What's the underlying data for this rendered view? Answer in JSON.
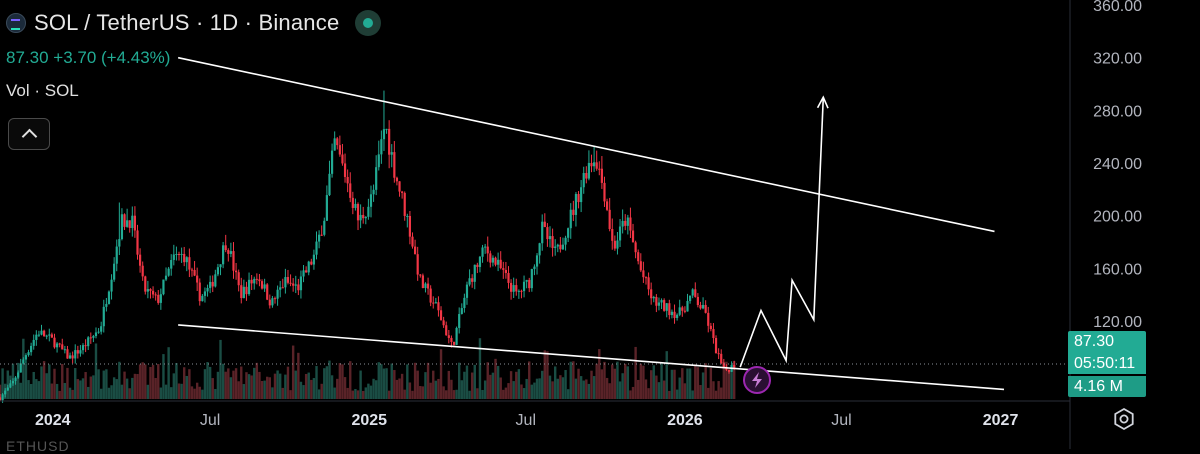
{
  "header": {
    "title": "SOL / TetherUS · 1D · Binance",
    "quote": "87.30 +3.70 (+4.43%)",
    "volume_label": "Vol · SOL",
    "cutoff_text": "ETHUSD"
  },
  "price_tags": {
    "price": "87.30",
    "countdown": "05:50:11",
    "volume": "4.16 M"
  },
  "colors": {
    "up": "#22ab94",
    "down": "#f23645",
    "accent": "#9c27b0"
  },
  "icons": [
    "symbol-logo-icon",
    "market-open-icon",
    "chevron-up-icon",
    "lightning-icon",
    "settings-icon"
  ],
  "chart_data": {
    "type": "candlestick",
    "ylim": [
      60,
      360
    ],
    "y_ticks": [
      "360.00",
      "320.00",
      "280.00",
      "240.00",
      "200.00",
      "160.00",
      "120.00"
    ],
    "y_tick_values": [
      360,
      320,
      280,
      240,
      200,
      160,
      120
    ],
    "x_ticks": [
      "2024",
      "Jul",
      "2025",
      "Jul",
      "2026",
      "Jul",
      "2027"
    ],
    "x_tick_dates": [
      "2024-01-01",
      "2024-07-01",
      "2025-01-01",
      "2025-07-01",
      "2026-01-01",
      "2026-07-01",
      "2027-01-01"
    ],
    "x_range": [
      "2023-11-01",
      "2027-03-20"
    ],
    "bold_x_ticks": [
      "2024",
      "2025",
      "2026",
      "2027"
    ],
    "last_price": 87.3,
    "series_path": [
      [
        "2023-11-01",
        62
      ],
      [
        "2023-11-15",
        72
      ],
      [
        "2023-12-01",
        95
      ],
      [
        "2023-12-15",
        112
      ],
      [
        "2024-01-01",
        105
      ],
      [
        "2024-01-20",
        92
      ],
      [
        "2024-02-05",
        100
      ],
      [
        "2024-02-25",
        115
      ],
      [
        "2024-03-10",
        160
      ],
      [
        "2024-03-20",
        195
      ],
      [
        "2024-04-01",
        198
      ],
      [
        "2024-04-15",
        145
      ],
      [
        "2024-05-01",
        135
      ],
      [
        "2024-05-20",
        168
      ],
      [
        "2024-06-01",
        170
      ],
      [
        "2024-06-20",
        138
      ],
      [
        "2024-07-01",
        145
      ],
      [
        "2024-07-20",
        182
      ],
      [
        "2024-08-05",
        140
      ],
      [
        "2024-08-25",
        155
      ],
      [
        "2024-09-10",
        133
      ],
      [
        "2024-09-25",
        150
      ],
      [
        "2024-10-10",
        145
      ],
      [
        "2024-10-30",
        170
      ],
      [
        "2024-11-10",
        200
      ],
      [
        "2024-11-22",
        255
      ],
      [
        "2024-12-05",
        230
      ],
      [
        "2024-12-20",
        195
      ],
      [
        "2025-01-05",
        215
      ],
      [
        "2025-01-19",
        270
      ],
      [
        "2025-02-01",
        230
      ],
      [
        "2025-02-15",
        195
      ],
      [
        "2025-03-01",
        150
      ],
      [
        "2025-03-20",
        130
      ],
      [
        "2025-04-07",
        100
      ],
      [
        "2025-04-25",
        148
      ],
      [
        "2025-05-15",
        175
      ],
      [
        "2025-06-01",
        160
      ],
      [
        "2025-06-20",
        140
      ],
      [
        "2025-07-05",
        150
      ],
      [
        "2025-07-20",
        190
      ],
      [
        "2025-08-05",
        170
      ],
      [
        "2025-08-25",
        205
      ],
      [
        "2025-09-10",
        238
      ],
      [
        "2025-09-20",
        245
      ],
      [
        "2025-10-01",
        215
      ],
      [
        "2025-10-10",
        175
      ],
      [
        "2025-10-25",
        198
      ],
      [
        "2025-11-10",
        160
      ],
      [
        "2025-11-25",
        135
      ],
      [
        "2025-12-10",
        130
      ],
      [
        "2025-12-25",
        125
      ],
      [
        "2026-01-10",
        140
      ],
      [
        "2026-01-25",
        125
      ],
      [
        "2026-02-05",
        100
      ],
      [
        "2026-02-15",
        82
      ],
      [
        "2026-03-01",
        87.3
      ]
    ],
    "spikes": [
      [
        "2024-03-18",
        210
      ],
      [
        "2024-11-22",
        264
      ],
      [
        "2025-01-19",
        295
      ],
      [
        "2025-09-18",
        253
      ]
    ],
    "trendlines": [
      {
        "from": [
          "2024-05-25",
          320
        ],
        "to": [
          "2026-12-25",
          188
        ]
      },
      {
        "from": [
          "2024-05-25",
          117
        ],
        "to": [
          "2027-01-05",
          68
        ]
      }
    ],
    "projection": [
      [
        "2026-03-06",
        85
      ],
      [
        "2026-03-30",
        128
      ],
      [
        "2026-04-28",
        90
      ],
      [
        "2026-05-05",
        151
      ],
      [
        "2026-05-30",
        121
      ],
      [
        "2026-06-10",
        290
      ]
    ]
  }
}
